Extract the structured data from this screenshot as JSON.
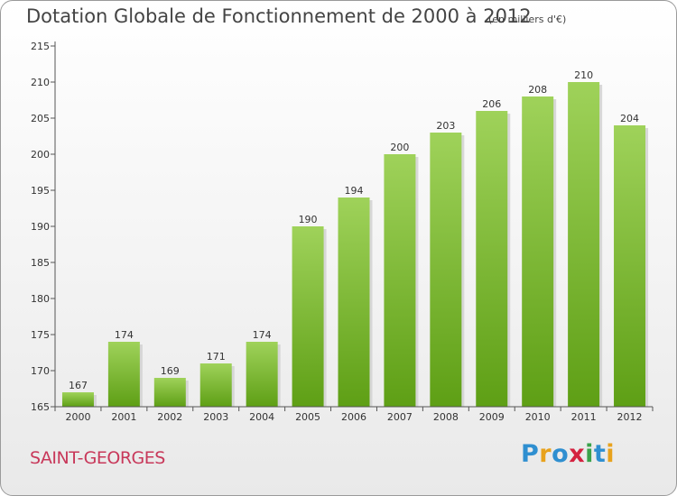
{
  "title": "Dotation Globale de Fonctionnement de 2000 à 2012",
  "subtitle": "(en milliers d'€)",
  "location": "SAINT-GEORGES",
  "logo": {
    "text": "Proxiti",
    "letters": [
      "P",
      "r",
      "o",
      "x",
      "i",
      "t",
      "i"
    ],
    "colors": [
      "#2f8fd0",
      "#e8a21c",
      "#2f8fd0",
      "#d4213f",
      "#3aa24a",
      "#2f8fd0",
      "#e8a21c"
    ]
  },
  "colors": {
    "bar_top": "#9fd25a",
    "bar_bottom": "#5e9f15",
    "location": "#c8385a"
  },
  "chart_data": {
    "type": "bar",
    "categories": [
      "2000",
      "2001",
      "2002",
      "2003",
      "2004",
      "2005",
      "2006",
      "2007",
      "2008",
      "2009",
      "2010",
      "2011",
      "2012"
    ],
    "values": [
      167,
      174,
      169,
      171,
      174,
      190,
      194,
      200,
      203,
      206,
      208,
      210,
      204
    ],
    "ylim": [
      165,
      215
    ],
    "yticks": [
      165,
      170,
      175,
      180,
      185,
      190,
      195,
      200,
      205,
      210,
      215
    ],
    "grid": false,
    "data_labels": true
  }
}
